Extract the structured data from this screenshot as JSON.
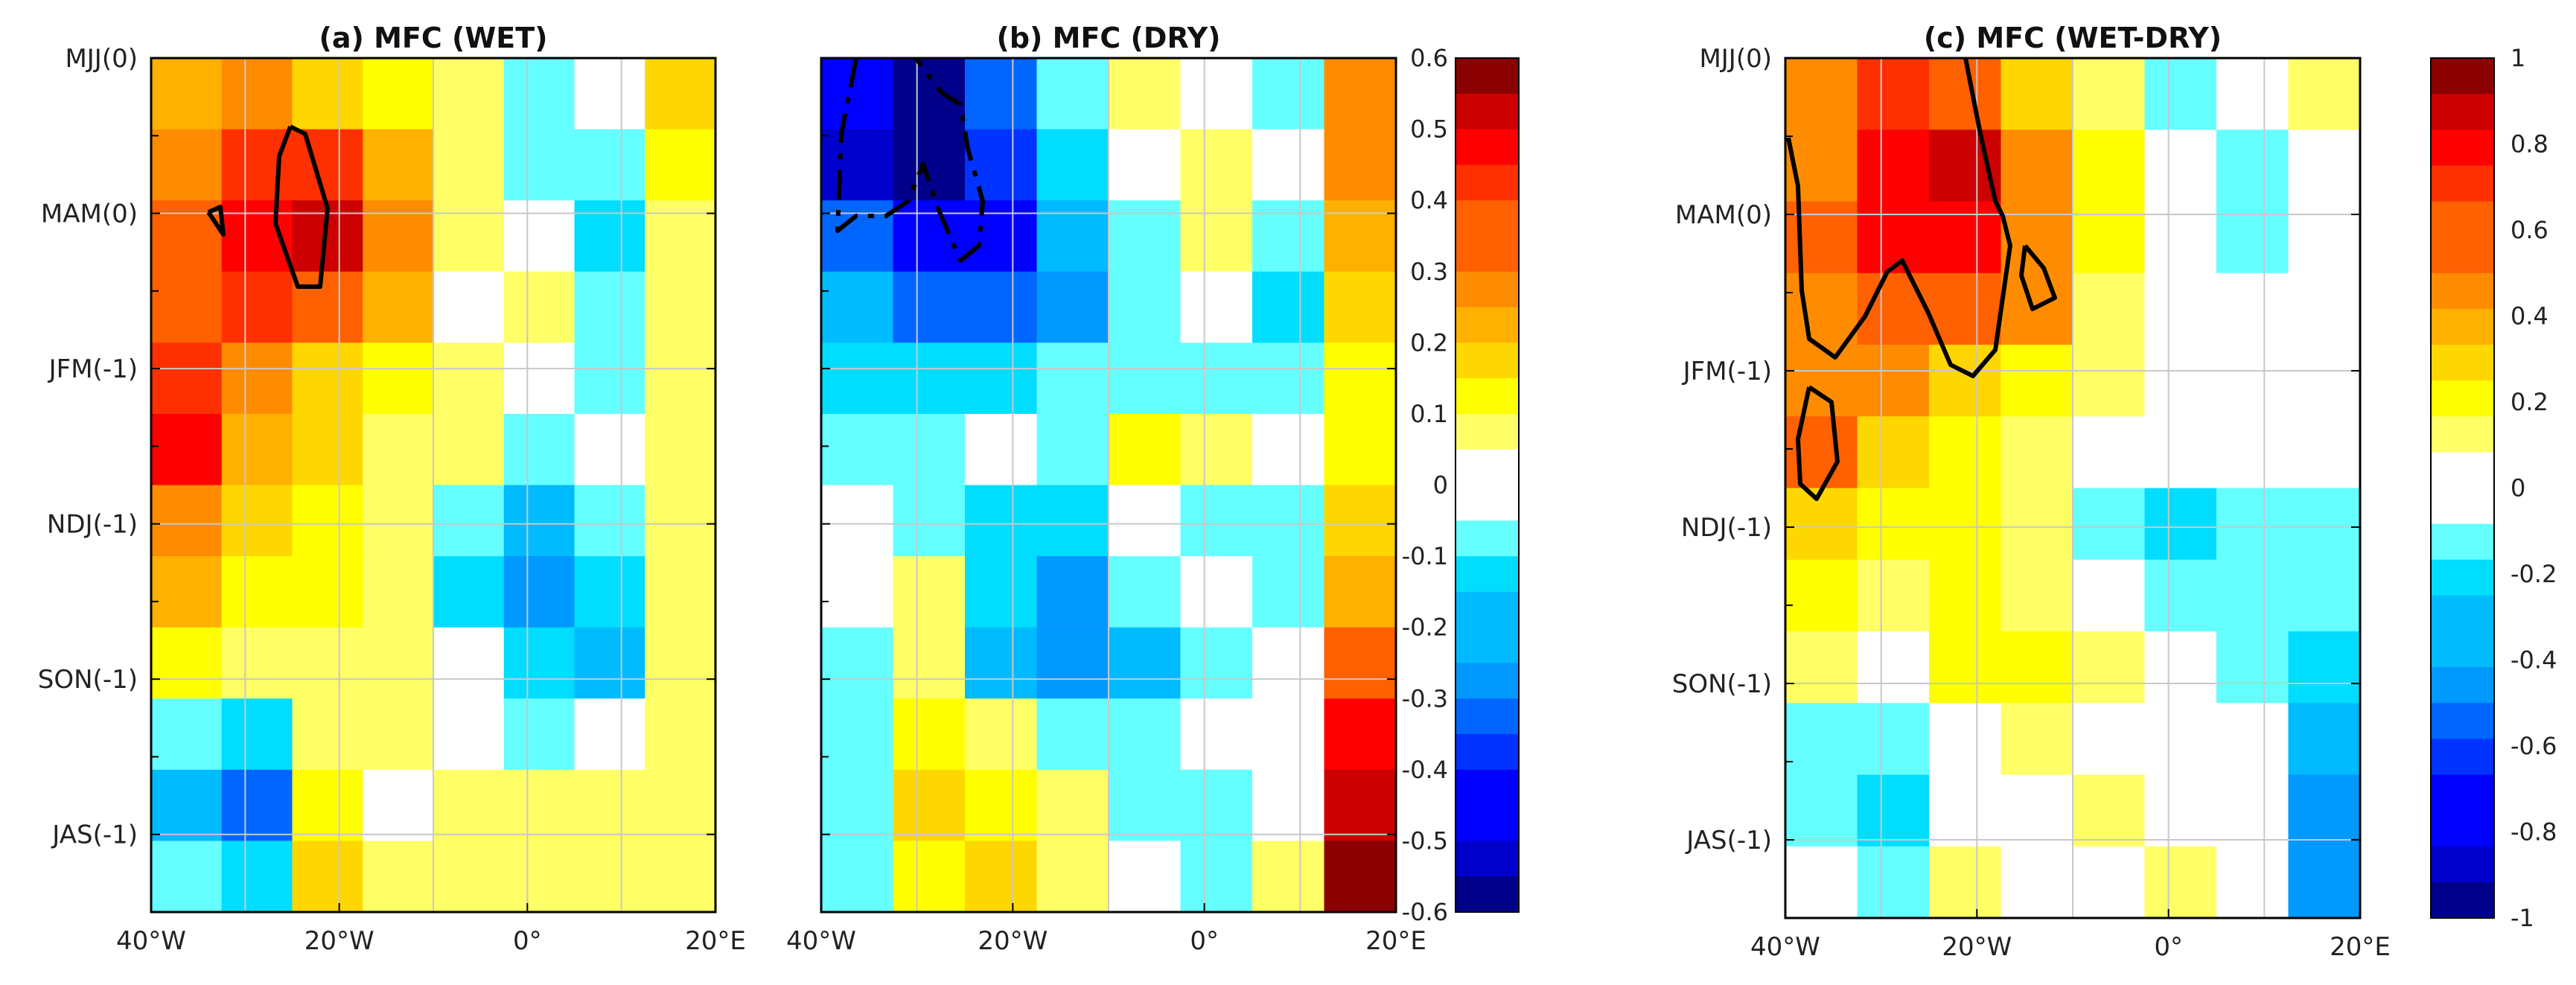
{
  "chart_data": [
    {
      "type": "heatmap",
      "title": "(a) MFC (WET)",
      "xticks": [
        "40°W",
        "20°W",
        "0°",
        "20°E"
      ],
      "yticks": [
        "MJJ(0)",
        "MAM(0)",
        "JFM(-1)",
        "NDJ(-1)",
        "SON(-1)",
        "JAS(-1)"
      ],
      "xlim": [
        -40,
        20
      ],
      "ylim_months": [
        0,
        11
      ],
      "clim": [
        -0.6,
        0.6
      ],
      "grid": true,
      "colorbar": "shared with (b)",
      "significance_contours": "solid black around maxima near 25°W–33°W, MAM(0)",
      "grid_x": [
        -40,
        -30,
        -20,
        -10,
        0,
        10,
        20
      ],
      "grid_y": [
        0,
        2,
        4,
        6,
        8,
        10
      ],
      "values": [
        [
          0.25,
          0.3,
          0.2,
          0.15,
          0.05,
          -0.1,
          0.0,
          0.2
        ],
        [
          0.3,
          0.38,
          0.42,
          0.25,
          0.1,
          -0.05,
          -0.1,
          0.15
        ],
        [
          0.35,
          0.45,
          0.5,
          0.3,
          0.05,
          0.0,
          -0.15,
          0.1
        ],
        [
          0.35,
          0.4,
          0.35,
          0.25,
          0.0,
          0.05,
          -0.05,
          0.05
        ],
        [
          0.4,
          0.3,
          0.2,
          0.15,
          0.05,
          0.0,
          -0.05,
          0.05
        ],
        [
          0.45,
          0.25,
          0.2,
          0.1,
          0.05,
          -0.05,
          0.0,
          0.1
        ],
        [
          0.3,
          0.2,
          0.15,
          0.1,
          -0.1,
          -0.2,
          -0.1,
          0.05
        ],
        [
          0.25,
          0.15,
          0.15,
          0.05,
          -0.15,
          -0.25,
          -0.15,
          0.05
        ],
        [
          0.15,
          0.05,
          0.1,
          0.05,
          0.0,
          -0.15,
          -0.2,
          0.05
        ],
        [
          -0.1,
          -0.15,
          0.05,
          0.05,
          0.0,
          -0.05,
          0.0,
          0.1
        ],
        [
          -0.2,
          -0.3,
          0.15,
          0.0,
          0.1,
          0.05,
          0.05,
          0.1
        ],
        [
          -0.1,
          -0.15,
          0.2,
          0.1,
          0.05,
          0.1,
          0.1,
          0.05
        ]
      ]
    },
    {
      "type": "heatmap",
      "title": "(b) MFC (DRY)",
      "xticks": [
        "40°W",
        "20°W",
        "0°",
        "20°E"
      ],
      "yticks": [
        "MJJ(0)",
        "MAM(0)",
        "JFM(-1)",
        "NDJ(-1)",
        "SON(-1)",
        "JAS(-1)"
      ],
      "xlim": [
        -40,
        20
      ],
      "ylim_months": [
        0,
        11
      ],
      "clim": [
        -0.6,
        0.6
      ],
      "grid": true,
      "colorbar": "right, -0.6 to 0.6",
      "significance_contours": "dash-dot black around minimum near 30°W–40°W, MJJ(0)–MAM(0)",
      "grid_x": [
        -40,
        -30,
        -20,
        -10,
        0,
        10,
        20
      ],
      "grid_y": [
        0,
        2,
        4,
        6,
        8,
        10
      ],
      "values": [
        [
          -0.45,
          -0.55,
          -0.3,
          -0.1,
          0.1,
          0.0,
          -0.05,
          0.3
        ],
        [
          -0.5,
          -0.55,
          -0.4,
          -0.15,
          0.0,
          0.05,
          0.0,
          0.3
        ],
        [
          -0.35,
          -0.45,
          -0.45,
          -0.2,
          -0.05,
          0.1,
          -0.05,
          0.25
        ],
        [
          -0.2,
          -0.3,
          -0.3,
          -0.25,
          -0.1,
          0.0,
          -0.15,
          0.2
        ],
        [
          -0.15,
          -0.15,
          -0.15,
          -0.1,
          -0.05,
          -0.05,
          -0.1,
          0.15
        ],
        [
          -0.1,
          -0.05,
          0.0,
          -0.05,
          0.15,
          0.05,
          0.0,
          0.15
        ],
        [
          0.0,
          -0.05,
          -0.15,
          -0.15,
          0.0,
          -0.05,
          -0.1,
          0.2
        ],
        [
          0.0,
          0.05,
          -0.15,
          -0.25,
          -0.05,
          0.0,
          -0.05,
          0.25
        ],
        [
          -0.05,
          0.05,
          -0.2,
          -0.25,
          -0.2,
          -0.1,
          0.0,
          0.35
        ],
        [
          -0.1,
          0.15,
          0.05,
          -0.1,
          -0.05,
          0.0,
          0.0,
          0.45
        ],
        [
          -0.1,
          0.2,
          0.15,
          0.05,
          -0.05,
          -0.05,
          0.0,
          0.5
        ],
        [
          -0.05,
          0.15,
          0.2,
          0.05,
          0.0,
          -0.05,
          0.05,
          0.55
        ]
      ]
    },
    {
      "type": "heatmap",
      "title": "(c) MFC (WET-DRY)",
      "xticks": [
        "40°W",
        "20°W",
        "0°",
        "20°E"
      ],
      "yticks": [
        "MJJ(0)",
        "MAM(0)",
        "JFM(-1)",
        "NDJ(-1)",
        "SON(-1)",
        "JAS(-1)"
      ],
      "xlim": [
        -40,
        20
      ],
      "ylim_months": [
        0,
        11
      ],
      "clim": [
        -1,
        1
      ],
      "grid": true,
      "colorbar": "right, -1 to 1",
      "significance_contours": "solid black around maxima 20°W–40°W, MJJ(0)–JFM(-1)",
      "grid_x": [
        -40,
        -30,
        -20,
        -10,
        0,
        10,
        20
      ],
      "grid_y": [
        0,
        2,
        4,
        6,
        8,
        10
      ],
      "values": [
        [
          0.45,
          0.7,
          0.6,
          0.3,
          0.15,
          -0.1,
          0.0,
          0.1
        ],
        [
          0.5,
          0.8,
          0.85,
          0.45,
          0.2,
          0.0,
          -0.1,
          0.05
        ],
        [
          0.55,
          0.75,
          0.8,
          0.5,
          0.25,
          0.0,
          -0.1,
          0.0
        ],
        [
          0.5,
          0.6,
          0.6,
          0.45,
          0.15,
          0.05,
          -0.05,
          -0.05
        ],
        [
          0.45,
          0.45,
          0.35,
          0.25,
          0.1,
          0.0,
          0.0,
          -0.05
        ],
        [
          0.55,
          0.3,
          0.2,
          0.15,
          0.0,
          -0.05,
          0.0,
          -0.05
        ],
        [
          0.3,
          0.25,
          0.2,
          0.15,
          -0.1,
          -0.2,
          -0.1,
          -0.1
        ],
        [
          0.25,
          0.15,
          0.2,
          0.15,
          0.0,
          -0.15,
          -0.15,
          -0.15
        ],
        [
          0.15,
          0.05,
          0.2,
          0.2,
          0.15,
          -0.05,
          -0.15,
          -0.2
        ],
        [
          -0.1,
          -0.15,
          0.0,
          0.1,
          0.05,
          0.0,
          0.0,
          -0.3
        ],
        [
          -0.15,
          -0.2,
          0.05,
          0.0,
          0.1,
          0.05,
          0.0,
          -0.4
        ],
        [
          -0.05,
          -0.1,
          0.1,
          0.05,
          0.05,
          0.1,
          0.05,
          -0.45
        ]
      ]
    }
  ],
  "colorbars": [
    {
      "ticks": [
        0.6,
        0.5,
        0.4,
        0.3,
        0.2,
        0.1,
        0,
        -0.1,
        -0.2,
        -0.3,
        -0.4,
        -0.5,
        -0.6
      ],
      "labels": [
        "0.6",
        "0.5",
        "0.4",
        "0.3",
        "0.2",
        "0.1",
        "0",
        "-0.1",
        "-0.2",
        "-0.3",
        "-0.4",
        "-0.5",
        "-0.6"
      ]
    },
    {
      "ticks": [
        1,
        0.8,
        0.6,
        0.4,
        0.2,
        0,
        -0.2,
        -0.4,
        -0.6,
        -0.8,
        -1
      ],
      "labels": [
        "1",
        "0.8",
        "0.6",
        "0.4",
        "0.2",
        "0",
        "-0.2",
        "-0.4",
        "-0.6",
        "-0.8",
        "-1"
      ]
    }
  ],
  "colors": {
    "negative": [
      "#00008b",
      "#0000cd",
      "#0000ff",
      "#0033ff",
      "#0066ff",
      "#0099ff",
      "#00bbff",
      "#00ddff",
      "#66ffff"
    ],
    "neutral": "#ffffff",
    "positive": [
      "#ffff66",
      "#ffff00",
      "#ffd700",
      "#ffb000",
      "#ff8c00",
      "#ff6000",
      "#ff3000",
      "#ff0000",
      "#cc0000",
      "#8b0000"
    ],
    "grid": "#c8c8c8",
    "contour": "#000000"
  }
}
